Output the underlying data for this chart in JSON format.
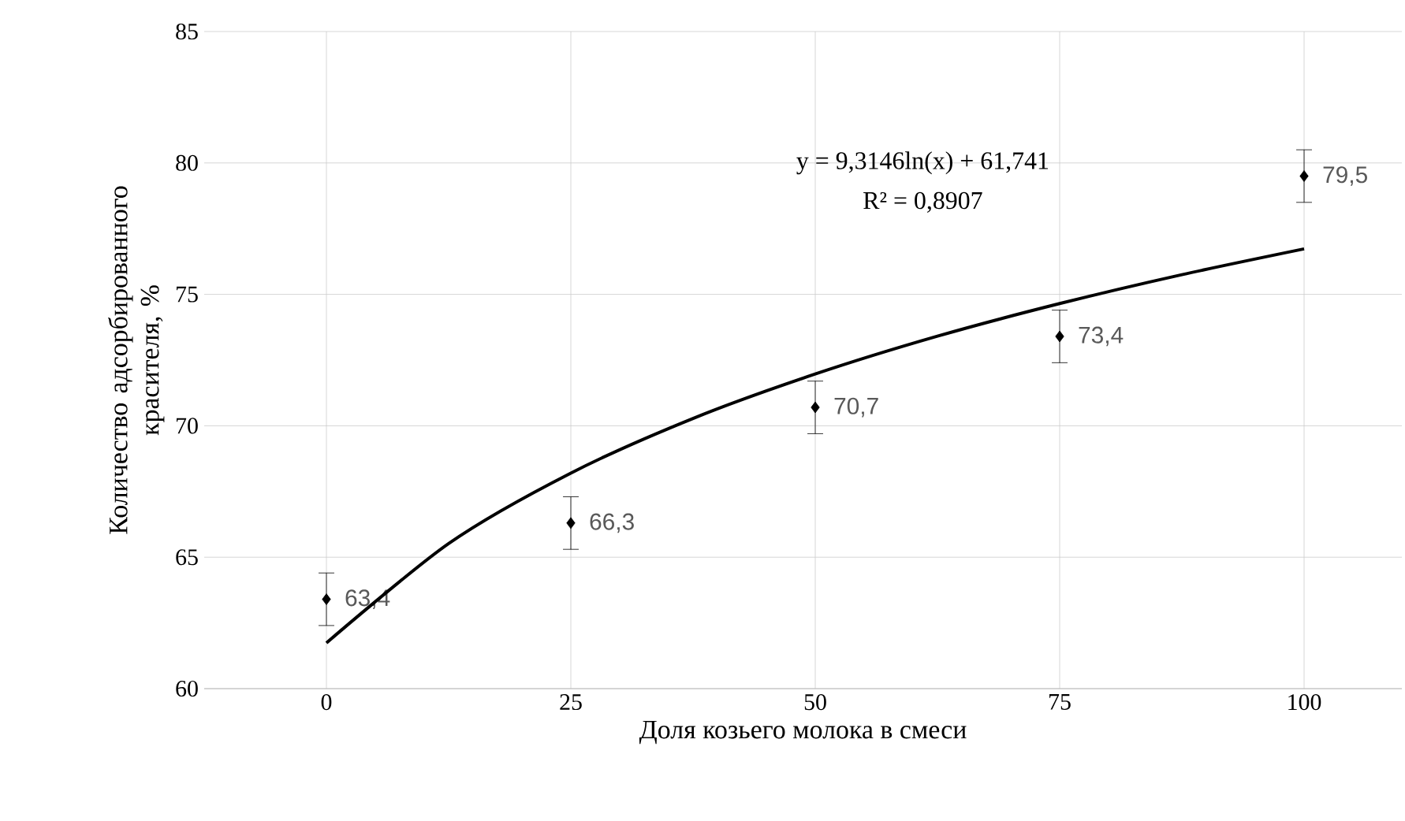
{
  "chart_data": {
    "type": "scatter",
    "xlabel": "Доля козьего молока в смеси",
    "ylabel": "Количество адсорбированного красителя, %",
    "x": [
      0,
      25,
      50,
      75,
      100
    ],
    "xlim": [
      -12.5,
      110
    ],
    "ylim": [
      60,
      85
    ],
    "xticks": [
      0,
      25,
      50,
      75,
      100
    ],
    "yticks": [
      60,
      65,
      70,
      75,
      80,
      85
    ],
    "grid": true,
    "marker": "diamond",
    "annotations": [
      "y = 9,3146ln(x)   + 61,741",
      "R² = 0,8907"
    ],
    "series": [
      {
        "color": "#000000",
        "values": [
          63.4,
          66.3,
          70.7,
          73.4,
          79.5
        ],
        "errors": [
          1,
          1,
          1,
          1,
          1
        ],
        "value_labels": [
          "63,4",
          "66,3",
          "70,7",
          "73,4",
          "79,5"
        ]
      },
      {
        "type": "line",
        "color": "#000000",
        "line_style": "solid",
        "marker": "none",
        "x": [
          0,
          12.5,
          25,
          37.5,
          50,
          62.5,
          75,
          87.5,
          100
        ],
        "values": [
          61.74,
          65.52,
          68.2,
          70.28,
          71.97,
          73.41,
          74.65,
          75.75,
          76.73
        ]
      }
    ]
  }
}
